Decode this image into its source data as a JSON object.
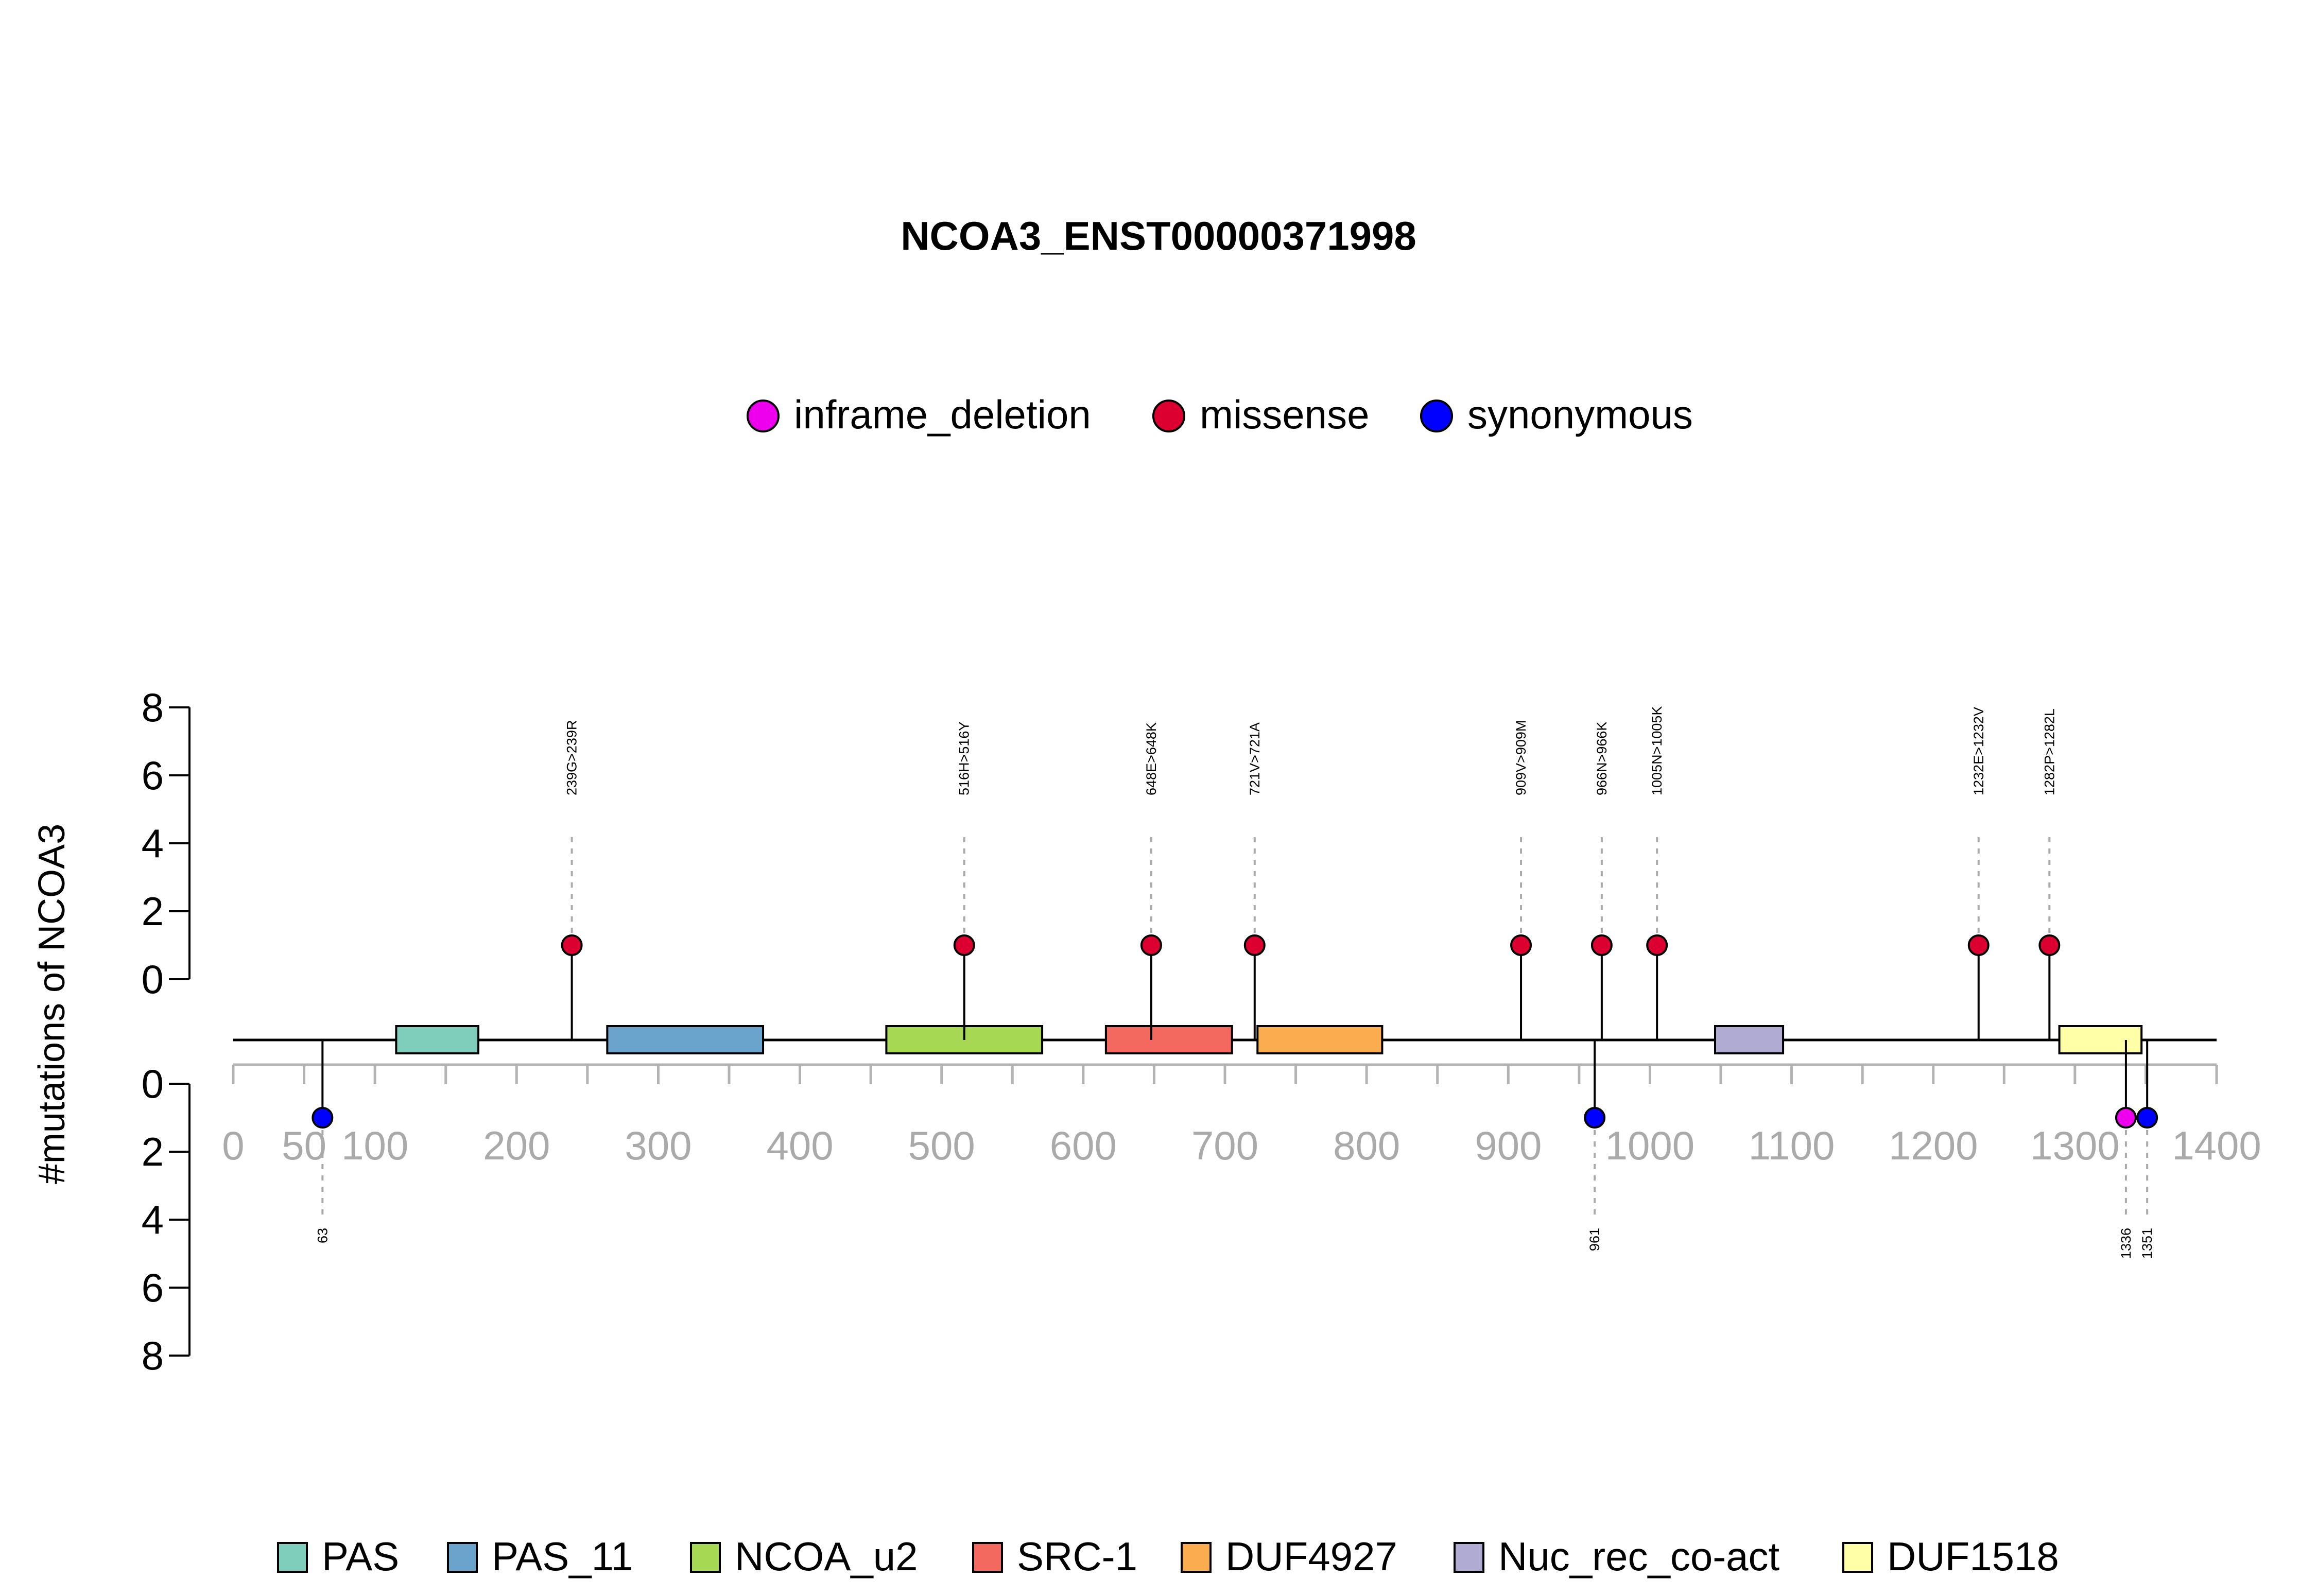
{
  "chart_data": {
    "type": "lollipop",
    "title": "NCOA3_ENST00000371998",
    "ylabel": "#mutations of NCOA3",
    "xlim": [
      0,
      1400
    ],
    "x_ticks": [
      0,
      50,
      100,
      200,
      300,
      400,
      500,
      600,
      700,
      800,
      900,
      1000,
      1100,
      1200,
      1300,
      1400
    ],
    "y_ticks": [
      0,
      2,
      4,
      6,
      8
    ],
    "ylim": [
      0,
      8
    ],
    "mutation_legend": [
      {
        "label": "inframe_deletion",
        "color": "#ee00ee"
      },
      {
        "label": "missense",
        "color": "#dc0030"
      },
      {
        "label": "synonymous",
        "color": "#0000ff"
      }
    ],
    "upper_mutations": [
      {
        "pos": 239,
        "count": 1,
        "label": "239G>239R",
        "type": "missense"
      },
      {
        "pos": 516,
        "count": 1,
        "label": "516H>516Y",
        "type": "missense"
      },
      {
        "pos": 648,
        "count": 1,
        "label": "648E>648K",
        "type": "missense"
      },
      {
        "pos": 721,
        "count": 1,
        "label": "721V>721A",
        "type": "missense"
      },
      {
        "pos": 909,
        "count": 1,
        "label": "909V>909M",
        "type": "missense"
      },
      {
        "pos": 966,
        "count": 1,
        "label": "966N>966K",
        "type": "missense"
      },
      {
        "pos": 1005,
        "count": 1,
        "label": "1005N>1005K",
        "type": "missense"
      },
      {
        "pos": 1232,
        "count": 1,
        "label": "1232E>1232V",
        "type": "missense"
      },
      {
        "pos": 1282,
        "count": 1,
        "label": "1282P>1282L",
        "type": "missense"
      }
    ],
    "lower_mutations": [
      {
        "pos": 63,
        "count": 1,
        "label": "63",
        "type": "synonymous"
      },
      {
        "pos": 961,
        "count": 1,
        "label": "961",
        "type": "synonymous"
      },
      {
        "pos": 1336,
        "count": 1,
        "label": "1336",
        "type": "inframe_deletion"
      },
      {
        "pos": 1351,
        "count": 1,
        "label": "1351",
        "type": "synonymous"
      }
    ],
    "domains": [
      {
        "name": "PAS",
        "start": 115,
        "end": 173,
        "color": "#7fcdbb"
      },
      {
        "name": "PAS_11",
        "start": 264,
        "end": 374,
        "color": "#6aa3cc"
      },
      {
        "name": "NCOA_u2",
        "start": 461,
        "end": 571,
        "color": "#a6d854"
      },
      {
        "name": "SRC-1",
        "start": 616,
        "end": 705,
        "color": "#f4695f"
      },
      {
        "name": "DUF4927",
        "start": 723,
        "end": 811,
        "color": "#fbac4e"
      },
      {
        "name": "Nuc_rec_co-act",
        "start": 1046,
        "end": 1094,
        "color": "#b0abd3"
      },
      {
        "name": "DUF1518",
        "start": 1289,
        "end": 1347,
        "color": "#ffffa8"
      }
    ]
  }
}
